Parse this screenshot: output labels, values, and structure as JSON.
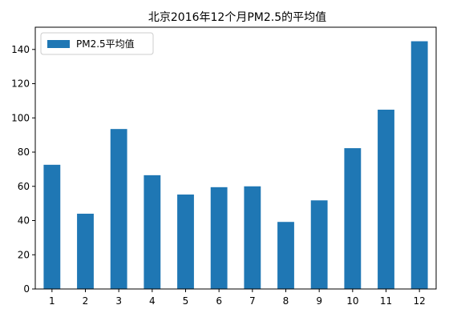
{
  "chart_data": {
    "type": "bar",
    "title": "北京2016年12个月PM2.5的平均值",
    "xlabel": "",
    "ylabel": "",
    "categories": [
      "1",
      "2",
      "3",
      "4",
      "5",
      "6",
      "7",
      "8",
      "9",
      "10",
      "11",
      "12"
    ],
    "series": [
      {
        "name": "PM2.5平均值",
        "values": [
          72.6,
          44.0,
          93.5,
          66.5,
          55.2,
          59.5,
          60.0,
          39.2,
          51.8,
          82.3,
          104.8,
          144.8
        ],
        "color": "#1f77b4"
      }
    ],
    "ylim": [
      0,
      153
    ],
    "yticks": [
      0,
      20,
      40,
      60,
      80,
      100,
      120,
      140
    ],
    "grid": false,
    "legend": "top-left"
  }
}
